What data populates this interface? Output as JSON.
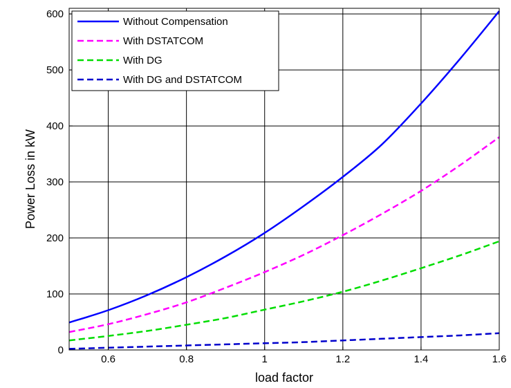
{
  "chart_data": {
    "type": "line",
    "title": "",
    "xlabel": "load factor",
    "ylabel": "Power Loss in kW",
    "xlim": [
      0.5,
      1.6
    ],
    "ylim": [
      0,
      610
    ],
    "xticks": [
      0.6,
      0.8,
      1,
      1.2,
      1.4,
      1.6
    ],
    "xtick_labels": [
      "0.6",
      "0.8",
      "1",
      "1.2",
      "1.4",
      "1.6"
    ],
    "yticks": [
      0,
      100,
      200,
      300,
      400,
      500,
      600
    ],
    "ytick_labels": [
      "0",
      "100",
      "200",
      "300",
      "400",
      "500",
      "600"
    ],
    "grid": true,
    "legend_position": "top-left",
    "x": [
      0.5,
      0.6,
      0.7,
      0.8,
      0.9,
      1.0,
      1.1,
      1.2,
      1.3,
      1.4,
      1.5,
      1.6
    ],
    "series": [
      {
        "name": "Without Compensation",
        "color": "#0000ff",
        "dash": "solid",
        "values": [
          49,
          71,
          98,
          130,
          167,
          209,
          257,
          309,
          367,
          440,
          520,
          605
        ]
      },
      {
        "name": "With DSTATCOM",
        "color": "#ff00ff",
        "dash": "dashed",
        "values": [
          32,
          46,
          64,
          85,
          111,
          139,
          170,
          205,
          243,
          284,
          330,
          380
        ]
      },
      {
        "name": "With DG",
        "color": "#00dd00",
        "dash": "dashed",
        "values": [
          17,
          25,
          34,
          45,
          57,
          72,
          87,
          104,
          124,
          146,
          169,
          194
        ]
      },
      {
        "name": "With DG and DSTATCOM",
        "color": "#0000cc",
        "dash": "dashed",
        "values": [
          2,
          4,
          6,
          8,
          10,
          12,
          14,
          17,
          20,
          23,
          26,
          30
        ]
      }
    ]
  }
}
